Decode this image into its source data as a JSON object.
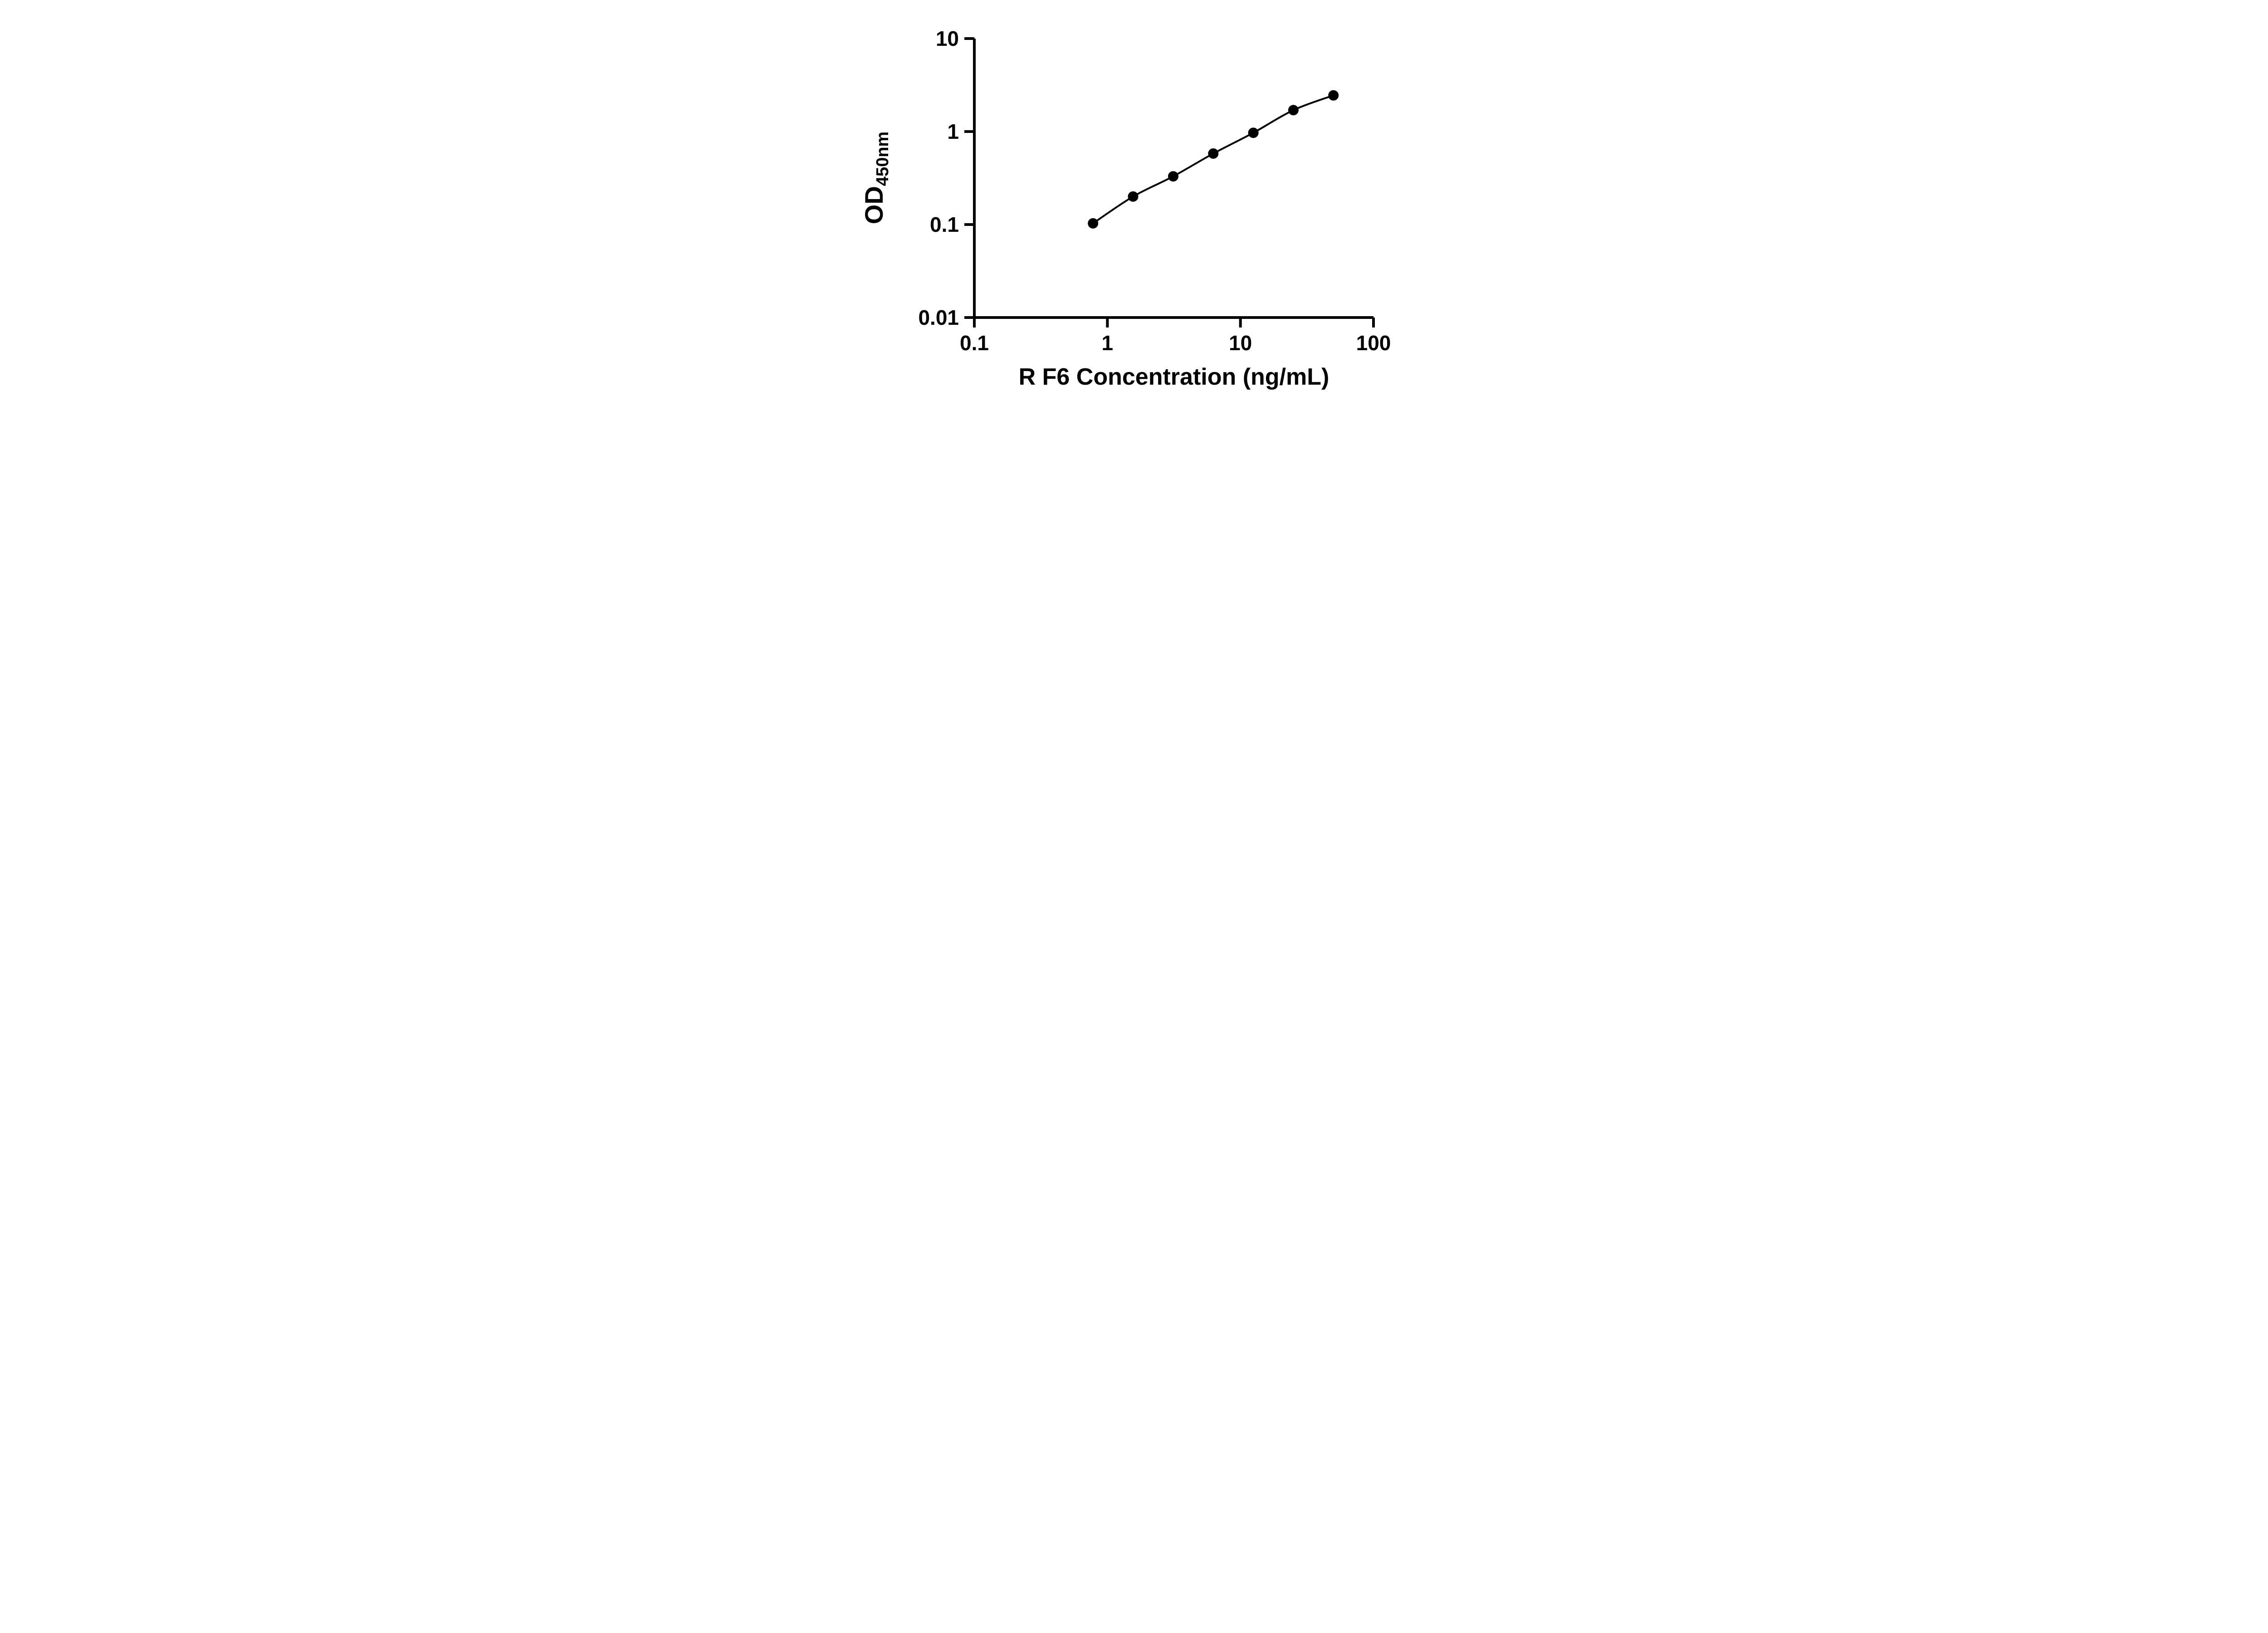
{
  "figure": {
    "background_color": "#ffffff",
    "axis_color": "#000000"
  },
  "chart_data": {
    "type": "scatter",
    "title": "",
    "x": [
      0.78,
      1.56,
      3.125,
      6.25,
      12.5,
      25,
      50
    ],
    "y": [
      0.103,
      0.2,
      0.33,
      0.58,
      0.97,
      1.7,
      2.45
    ],
    "xlabel": "R F6 Concentration (ng/mL)",
    "ylabel": "OD450nm",
    "ylabel_base": "OD",
    "ylabel_subscript": "450nm",
    "xscale": "log",
    "yscale": "log",
    "xlim": [
      0.1,
      100
    ],
    "ylim": [
      0.01,
      10
    ],
    "x_ticks": [
      0.1,
      1,
      10,
      100
    ],
    "x_tick_labels": [
      "0.1",
      "1",
      "10",
      "100"
    ],
    "y_ticks": [
      0.01,
      0.1,
      1,
      10
    ],
    "y_tick_labels": [
      "0.01",
      "0.1",
      "1",
      "10"
    ],
    "grid": false,
    "legend": "none",
    "marker": "circle",
    "marker_color": "#000000",
    "line_color": "#000000"
  }
}
